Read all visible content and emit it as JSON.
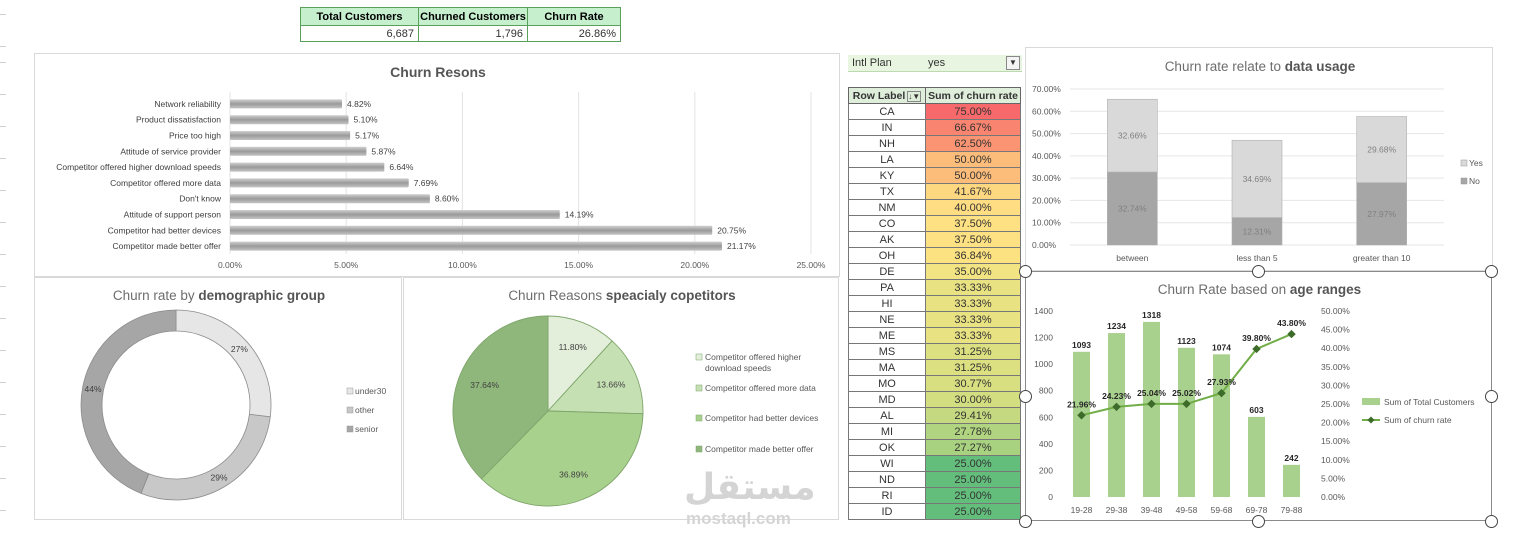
{
  "kpi": {
    "headers": [
      "Total Customers",
      "Churned Customers",
      "Churn Rate"
    ],
    "values": [
      "6,687",
      "1,796",
      "26.86%"
    ]
  },
  "reasons_chart": {
    "title": "Churn Resons",
    "chart_data": {
      "type": "bar",
      "orientation": "horizontal",
      "title": "Churn Resons",
      "categories": [
        "Network reliability",
        "Product dissatisfaction",
        "Price too high",
        "Attitude of service provider",
        "Competitor offered higher download speeds",
        "Competitor offered more data",
        "Don't know",
        "Attitude of support person",
        "Competitor had better devices",
        "Competitor made better offer"
      ],
      "values": [
        4.82,
        5.1,
        5.17,
        5.87,
        6.64,
        7.69,
        8.6,
        14.19,
        20.75,
        21.17
      ],
      "labels": [
        "4.82%",
        "5.10%",
        "5.17%",
        "5.87%",
        "6.64%",
        "7.69%",
        "8.60%",
        "14.19%",
        "20.75%",
        "21.17%"
      ],
      "xlim": [
        0,
        25
      ],
      "xticks": [
        "0.00%",
        "5.00%",
        "10.00%",
        "15.00%",
        "20.00%",
        "25.00%"
      ]
    }
  },
  "demographic_chart": {
    "title_plain": "Churn rate by ",
    "title_bold": "demographic group",
    "chart_data": {
      "type": "pie",
      "variant": "doughnut",
      "title": "Churn rate by demographic group",
      "categories": [
        "under30",
        "other",
        "senior"
      ],
      "values": [
        27,
        29,
        44
      ],
      "labels": [
        "27%",
        "29%",
        "44%"
      ],
      "colors": [
        "#e6e6e6",
        "#c8c8c8",
        "#a6a6a6"
      ]
    }
  },
  "competitor_chart": {
    "title_plain": "Churn Reasons ",
    "title_bold": "speacialy copetitors",
    "chart_data": {
      "type": "pie",
      "title": "Churn Reasons speacialy copetitors",
      "categories": [
        "Competitor offered higher download speeds",
        "Competitor offered more data",
        "Competitor had better devices",
        "Competitor made better offer"
      ],
      "legend_lines": [
        [
          "Competitor offered higher",
          "download speeds"
        ],
        [
          "Competitor offered more data"
        ],
        [
          "Competitor had better devices"
        ],
        [
          "Competitor made better offer"
        ]
      ],
      "values": [
        11.8,
        13.66,
        36.89,
        37.64
      ],
      "labels": [
        "11.80%",
        "13.66%",
        "36.89%",
        "37.64%"
      ],
      "colors": [
        "#e3efdb",
        "#c5e0b3",
        "#a9d18e",
        "#8fb77c"
      ]
    }
  },
  "intl_filter": {
    "label": "Intl Plan",
    "value": "yes",
    "icon": "filter-icon"
  },
  "state_table": {
    "headers": [
      "Row Label",
      "Sum of churn rate"
    ],
    "rows": [
      {
        "state": "CA",
        "rate": "75.00%",
        "color": "#f8696b"
      },
      {
        "state": "IN",
        "rate": "66.67%",
        "color": "#f98570"
      },
      {
        "state": "NH",
        "rate": "62.50%",
        "color": "#fa9473"
      },
      {
        "state": "LA",
        "rate": "50.00%",
        "color": "#fcbd7b"
      },
      {
        "state": "KY",
        "rate": "50.00%",
        "color": "#fcbd7b"
      },
      {
        "state": "TX",
        "rate": "41.67%",
        "color": "#fed880"
      },
      {
        "state": "NM",
        "rate": "40.00%",
        "color": "#ffdd82"
      },
      {
        "state": "CO",
        "rate": "37.50%",
        "color": "#fee182"
      },
      {
        "state": "AK",
        "rate": "37.50%",
        "color": "#fee182"
      },
      {
        "state": "OH",
        "rate": "36.84%",
        "color": "#fde282"
      },
      {
        "state": "DE",
        "rate": "35.00%",
        "color": "#f3e483"
      },
      {
        "state": "PA",
        "rate": "33.33%",
        "color": "#e9e283"
      },
      {
        "state": "HI",
        "rate": "33.33%",
        "color": "#e9e283"
      },
      {
        "state": "NE",
        "rate": "33.33%",
        "color": "#e9e283"
      },
      {
        "state": "ME",
        "rate": "33.33%",
        "color": "#e9e283"
      },
      {
        "state": "MS",
        "rate": "31.25%",
        "color": "#dce081"
      },
      {
        "state": "MA",
        "rate": "31.25%",
        "color": "#dce081"
      },
      {
        "state": "MO",
        "rate": "30.77%",
        "color": "#d8df81"
      },
      {
        "state": "MD",
        "rate": "30.00%",
        "color": "#d3de81"
      },
      {
        "state": "AL",
        "rate": "29.41%",
        "color": "#c5da80"
      },
      {
        "state": "MI",
        "rate": "27.78%",
        "color": "#b0d47f"
      },
      {
        "state": "OK",
        "rate": "27.27%",
        "color": "#a8d27f"
      },
      {
        "state": "WI",
        "rate": "25.00%",
        "color": "#63be7b"
      },
      {
        "state": "ND",
        "rate": "25.00%",
        "color": "#63be7b"
      },
      {
        "state": "RI",
        "rate": "25.00%",
        "color": "#63be7b"
      },
      {
        "state": "ID",
        "rate": "25.00%",
        "color": "#63be7b"
      }
    ]
  },
  "usage_chart": {
    "title_plain": "Churn rate relate to ",
    "title_bold": "data usage",
    "chart_data": {
      "type": "bar",
      "stacked": true,
      "title": "Churn rate relate to data usage",
      "categories": [
        "between",
        "less than 5",
        "greater than 10"
      ],
      "series": [
        {
          "name": "No",
          "values": [
            32.74,
            12.31,
            27.97
          ],
          "labels": [
            "32.74%",
            "12.31%",
            "27.97%"
          ],
          "color": "#a6a6a6"
        },
        {
          "name": "Yes",
          "values": [
            32.66,
            34.69,
            29.68
          ],
          "labels": [
            "32.66%",
            "34.69%",
            "29.68%"
          ],
          "color": "#d9d9d9"
        }
      ],
      "legend_order": [
        "Yes",
        "No"
      ],
      "ylim": [
        0,
        70
      ],
      "yticks": [
        "0.00%",
        "10.00%",
        "20.00%",
        "30.00%",
        "40.00%",
        "50.00%",
        "60.00%",
        "70.00%"
      ]
    }
  },
  "age_chart": {
    "title_plain": "Churn Rate based on ",
    "title_bold": "age ranges",
    "chart_data": {
      "type": "bar",
      "combo": "bar+line",
      "title": "Churn Rate based on age ranges",
      "categories": [
        "19-28",
        "29-38",
        "39-48",
        "49-58",
        "59-68",
        "69-78",
        "79-88"
      ],
      "series": [
        {
          "name": "Sum of Total Customers",
          "type": "bar",
          "axis": "left",
          "values": [
            1093,
            1234,
            1318,
            1123,
            1074,
            603,
            242
          ],
          "labels": [
            "1093",
            "1234",
            "1318",
            "1123",
            "1074",
            "603",
            "242"
          ],
          "color": "#a9d18e"
        },
        {
          "name": "Sum of churn rate",
          "type": "line",
          "axis": "right",
          "values": [
            21.96,
            24.23,
            25.04,
            25.02,
            27.93,
            39.8,
            43.8
          ],
          "labels": [
            "21.96%",
            "24.23%",
            "25.04%",
            "25.02%",
            "27.93%",
            "39.80%",
            "43.80%"
          ],
          "color": "#70ad47"
        }
      ],
      "ylim_left": [
        0,
        1400
      ],
      "yticks_left": [
        "0",
        "200",
        "400",
        "600",
        "800",
        "1000",
        "1200",
        "1400"
      ],
      "ylim_right": [
        0,
        50
      ],
      "yticks_right": [
        "0.00%",
        "5.00%",
        "10.00%",
        "15.00%",
        "20.00%",
        "25.00%",
        "30.00%",
        "35.00%",
        "40.00%",
        "45.00%",
        "50.00%"
      ]
    }
  },
  "watermark": {
    "arabic": "مستقل",
    "latin": "mostaql.com"
  }
}
